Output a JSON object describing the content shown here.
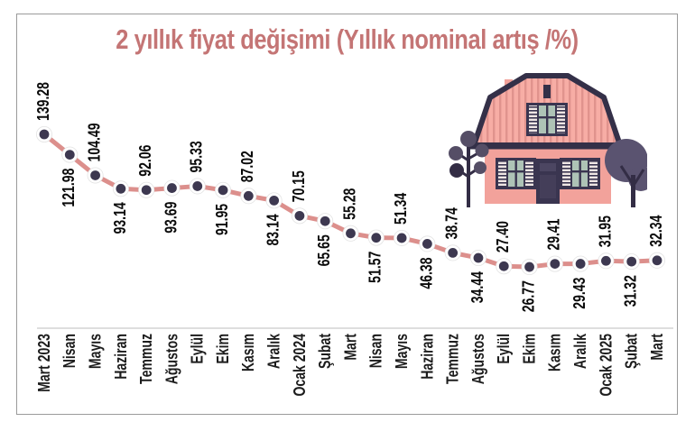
{
  "chart_data": {
    "type": "line",
    "title": "2 yıllık fiyat değişimi (Yıllık nominal artış /%)",
    "categories": [
      "Mart 2023",
      "Nisan",
      "Mayıs",
      "Haziran",
      "Temmuz",
      "Ağustos",
      "Eylül",
      "Ekim",
      "Kasım",
      "Aralık",
      "Ocak 2024",
      "Şubat",
      "Mart",
      "Nisan",
      "Mayıs",
      "Haziran",
      "Temmuz",
      "Ağustos",
      "Eylül",
      "Ekim",
      "Kasım",
      "Aralık",
      "Ocak 2025",
      "Şubat",
      "Mart"
    ],
    "values": [
      139.28,
      121.98,
      104.49,
      93.14,
      92.06,
      93.69,
      95.33,
      91.95,
      87.02,
      83.14,
      70.15,
      65.65,
      55.28,
      51.57,
      51.34,
      46.38,
      38.74,
      34.44,
      27.4,
      26.77,
      29.41,
      29.43,
      31.95,
      31.32,
      32.34
    ],
    "xlabel": "",
    "ylabel": "",
    "ylim": [
      26.77,
      139.28
    ],
    "grid": false,
    "legend": false,
    "label_decimals": 2,
    "colors": {
      "title": "#c47575",
      "line": "#dc8f8c",
      "marker_fill": "#3d3850",
      "marker_ring": "#ffffff",
      "value_label": "#0a0a0a",
      "month_label": "#1c1c1c",
      "axis_line": "#c9c9c9",
      "frame_border": "#9a9a9a"
    }
  },
  "icons": {
    "illustration": "house-with-trees-illustration"
  }
}
